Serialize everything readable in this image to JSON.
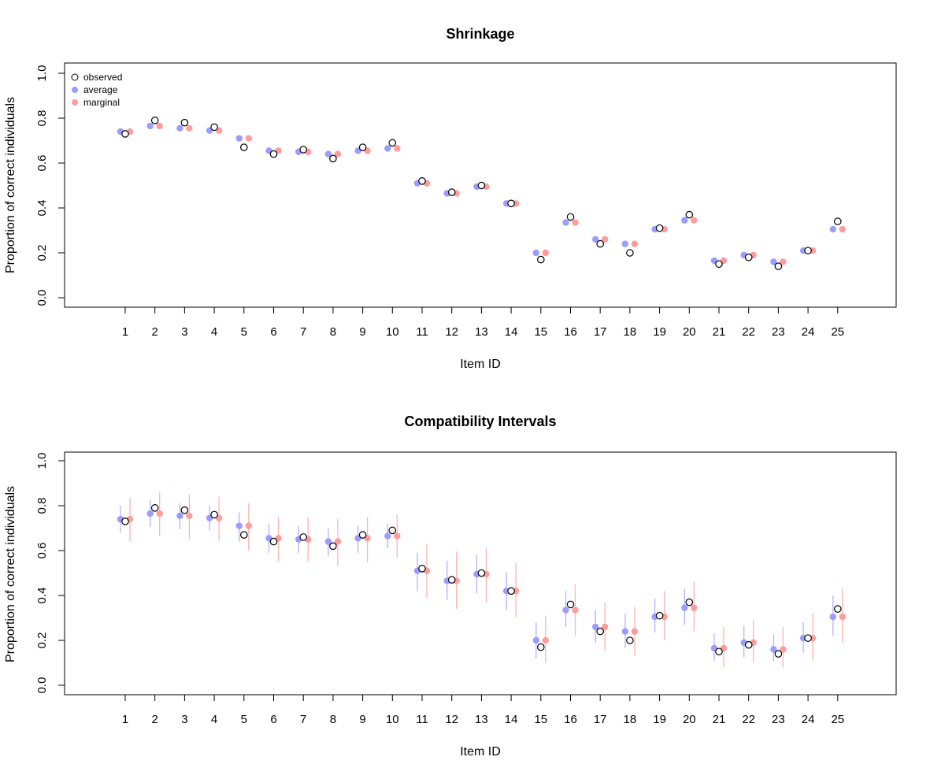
{
  "chart_data": [
    {
      "type": "scatter",
      "title": "Shrinkage",
      "xlabel": "Item ID",
      "ylabel": "Proportion of correct individuals",
      "ylim": [
        0,
        1
      ],
      "yticks": [
        "0.0",
        "0.2",
        "0.4",
        "0.6",
        "0.8",
        "1.0"
      ],
      "categories": [
        "1",
        "2",
        "3",
        "4",
        "5",
        "6",
        "7",
        "8",
        "9",
        "10",
        "11",
        "12",
        "13",
        "14",
        "15",
        "16",
        "17",
        "18",
        "19",
        "20",
        "21",
        "22",
        "23",
        "24",
        "25"
      ],
      "legend": {
        "placement": "top-left",
        "entries": [
          "observed",
          "average",
          "marginal"
        ]
      },
      "series": [
        {
          "name": "observed",
          "values": [
            0.73,
            0.79,
            0.78,
            0.76,
            0.67,
            0.64,
            0.66,
            0.62,
            0.67,
            0.69,
            0.52,
            0.47,
            0.5,
            0.42,
            0.17,
            0.36,
            0.24,
            0.2,
            0.31,
            0.37,
            0.15,
            0.18,
            0.14,
            0.21,
            0.34
          ]
        },
        {
          "name": "average",
          "values": [
            0.74,
            0.765,
            0.755,
            0.745,
            0.71,
            0.655,
            0.65,
            0.64,
            0.655,
            0.665,
            0.51,
            0.465,
            0.495,
            0.42,
            0.2,
            0.335,
            0.26,
            0.24,
            0.305,
            0.345,
            0.165,
            0.19,
            0.16,
            0.21,
            0.305
          ]
        },
        {
          "name": "marginal",
          "values": [
            0.74,
            0.765,
            0.755,
            0.745,
            0.71,
            0.655,
            0.65,
            0.64,
            0.655,
            0.665,
            0.51,
            0.465,
            0.495,
            0.42,
            0.2,
            0.335,
            0.26,
            0.24,
            0.305,
            0.345,
            0.165,
            0.19,
            0.16,
            0.21,
            0.305
          ]
        }
      ]
    },
    {
      "type": "scatter",
      "title": "Compatibility Intervals",
      "xlabel": "Item ID",
      "ylabel": "Proportion of correct individuals",
      "ylim": [
        0,
        1
      ],
      "yticks": [
        "0.0",
        "0.2",
        "0.4",
        "0.6",
        "0.8",
        "1.0"
      ],
      "categories": [
        "1",
        "2",
        "3",
        "4",
        "5",
        "6",
        "7",
        "8",
        "9",
        "10",
        "11",
        "12",
        "13",
        "14",
        "15",
        "16",
        "17",
        "18",
        "19",
        "20",
        "21",
        "22",
        "23",
        "24",
        "25"
      ],
      "series": [
        {
          "name": "observed",
          "values": [
            0.73,
            0.79,
            0.78,
            0.76,
            0.67,
            0.64,
            0.66,
            0.62,
            0.67,
            0.69,
            0.52,
            0.47,
            0.5,
            0.42,
            0.17,
            0.36,
            0.24,
            0.2,
            0.31,
            0.37,
            0.15,
            0.18,
            0.14,
            0.21,
            0.34
          ]
        },
        {
          "name": "average",
          "values": [
            0.74,
            0.765,
            0.755,
            0.745,
            0.71,
            0.655,
            0.65,
            0.64,
            0.655,
            0.665,
            0.51,
            0.465,
            0.495,
            0.42,
            0.2,
            0.335,
            0.26,
            0.24,
            0.305,
            0.345,
            0.165,
            0.19,
            0.16,
            0.21,
            0.305
          ],
          "lower": [
            0.68,
            0.705,
            0.695,
            0.69,
            0.64,
            0.59,
            0.59,
            0.575,
            0.59,
            0.61,
            0.42,
            0.38,
            0.41,
            0.335,
            0.12,
            0.26,
            0.19,
            0.165,
            0.235,
            0.27,
            0.11,
            0.125,
            0.105,
            0.145,
            0.22
          ],
          "upper": [
            0.8,
            0.825,
            0.81,
            0.8,
            0.77,
            0.72,
            0.71,
            0.7,
            0.71,
            0.72,
            0.59,
            0.555,
            0.58,
            0.505,
            0.28,
            0.42,
            0.335,
            0.32,
            0.385,
            0.43,
            0.23,
            0.265,
            0.225,
            0.28,
            0.4
          ]
        },
        {
          "name": "marginal",
          "values": [
            0.74,
            0.765,
            0.755,
            0.745,
            0.71,
            0.655,
            0.65,
            0.64,
            0.655,
            0.665,
            0.51,
            0.465,
            0.495,
            0.42,
            0.2,
            0.335,
            0.26,
            0.24,
            0.305,
            0.345,
            0.165,
            0.19,
            0.16,
            0.21,
            0.305
          ],
          "lower": [
            0.64,
            0.665,
            0.65,
            0.645,
            0.6,
            0.55,
            0.55,
            0.53,
            0.55,
            0.57,
            0.39,
            0.34,
            0.37,
            0.305,
            0.1,
            0.22,
            0.155,
            0.13,
            0.2,
            0.24,
            0.08,
            0.1,
            0.08,
            0.11,
            0.19
          ],
          "upper": [
            0.835,
            0.86,
            0.85,
            0.84,
            0.81,
            0.75,
            0.75,
            0.74,
            0.75,
            0.76,
            0.63,
            0.595,
            0.61,
            0.545,
            0.31,
            0.45,
            0.37,
            0.35,
            0.42,
            0.46,
            0.26,
            0.29,
            0.26,
            0.32,
            0.43
          ]
        }
      ]
    }
  ],
  "colors": {
    "observed": "#000000",
    "average": "#9c9cff",
    "marginal": "#ff9c9c",
    "average_interval": "#b3b3ff",
    "marginal_interval": "#ffb3b3"
  }
}
